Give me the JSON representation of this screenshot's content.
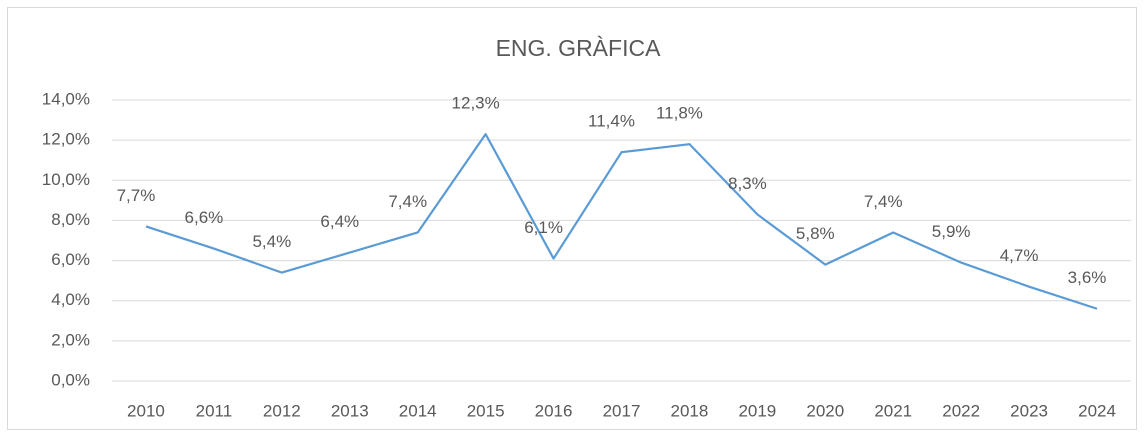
{
  "chart_data": {
    "type": "line",
    "title": "ENG. GRÀFICA",
    "categories": [
      "2010",
      "2011",
      "2012",
      "2013",
      "2014",
      "2015",
      "2016",
      "2017",
      "2018",
      "2019",
      "2020",
      "2021",
      "2022",
      "2023",
      "2024"
    ],
    "series": [
      {
        "name": "ENG. GRÀFICA",
        "color": "#5b9bd5",
        "values": [
          7.7,
          6.6,
          5.4,
          6.4,
          7.4,
          12.3,
          6.1,
          11.4,
          11.8,
          8.3,
          5.8,
          7.4,
          5.9,
          4.7,
          3.6
        ],
        "value_labels": [
          "7,7%",
          "6,6%",
          "5,4%",
          "6,4%",
          "7,4%",
          "12,3%",
          "6,1%",
          "11,4%",
          "11,8%",
          "8,3%",
          "5,8%",
          "7,4%",
          "5,9%",
          "4,7%",
          "3,6%"
        ]
      }
    ],
    "ylim": [
      0,
      14
    ],
    "yticks": [
      {
        "value": 0,
        "label": "0,0%"
      },
      {
        "value": 2,
        "label": "2,0%"
      },
      {
        "value": 4,
        "label": "4,0%"
      },
      {
        "value": 6,
        "label": "6,0%"
      },
      {
        "value": 8,
        "label": "8,0%"
      },
      {
        "value": 10,
        "label": "10,0%"
      },
      {
        "value": 12,
        "label": "12,0%"
      },
      {
        "value": 14,
        "label": "14,0%"
      }
    ],
    "grid": true
  }
}
